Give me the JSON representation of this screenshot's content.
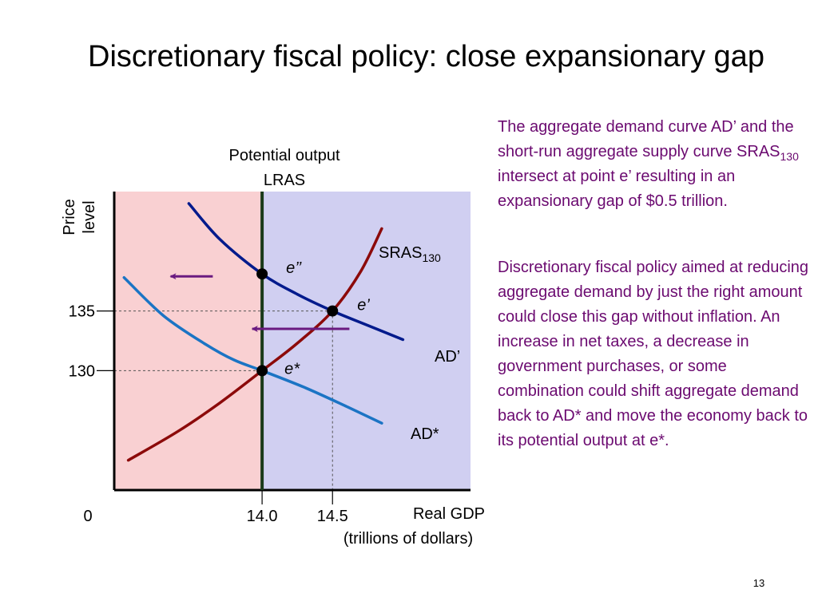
{
  "slide": {
    "title": "Discretionary fiscal policy: close expansionary gap",
    "number": "13"
  },
  "notes": {
    "note1": "The aggregate demand curve AD’ and the short-run aggregate supply curve SRAS130 intersect at point e’ resulting in an expansionary gap of $0.5 trillion.",
    "note2": "Discretionary fiscal policy aimed at reducing aggregate demand by just the right amount could close this gap without inflation. An increase in net taxes, a decrease in government purchases, or some combination could shift aggregate demand back to AD* and move the economy back to its potential output at e*."
  },
  "colors": {
    "recessionary_region": "#f9d0d2",
    "expansionary_region": "#d0cff1",
    "lras": "#1a3a1a",
    "ad_prime": "#001a8c",
    "ad_star": "#1b74c4",
    "sras": "#8c0a0a",
    "arrow": "#6a1a80",
    "note_text": "#6b0a70"
  },
  "chart_data": {
    "type": "line",
    "title": "",
    "xlabel": "Real GDP",
    "xlabel_sub": "(trillions of dollars)",
    "ylabel_line1": "Price",
    "ylabel_line2": "level",
    "x_origin_label": "0",
    "lras_label_line1": "Potential output",
    "lras_label_line2": "LRAS",
    "lras_x": 14.0,
    "x_ticks": [
      {
        "value": 14.0,
        "label": "14.0"
      },
      {
        "value": 14.5,
        "label": "14.5"
      }
    ],
    "y_ticks": [
      {
        "value": 135,
        "label": "135"
      },
      {
        "value": 130,
        "label": "130"
      }
    ],
    "sras_label_main": "SRAS",
    "sras_label_sub": "130",
    "ad_prime_label": "AD’",
    "ad_star_label": "AD*",
    "points": [
      {
        "name": "e’’",
        "x": 14.0,
        "y": 138.1
      },
      {
        "name": "e’",
        "x": 14.5,
        "y": 135
      },
      {
        "name": "e*",
        "x": 14.0,
        "y": 130
      }
    ],
    "series": [
      {
        "name": "AD’",
        "x": [
          13.48,
          13.7,
          14.0,
          14.25,
          14.5,
          14.75,
          15.0
        ],
        "y": [
          144.0,
          141.0,
          138.1,
          136.4,
          135.0,
          133.8,
          132.6
        ]
      },
      {
        "name": "AD*",
        "x": [
          13.02,
          13.3,
          13.6,
          13.8,
          14.0,
          14.3,
          14.6,
          14.85
        ],
        "y": [
          137.8,
          134.6,
          132.2,
          130.9,
          130.0,
          128.6,
          127.0,
          125.6
        ]
      },
      {
        "name": "SRAS130",
        "x": [
          13.05,
          13.4,
          13.7,
          14.0,
          14.25,
          14.5,
          14.7,
          14.85
        ],
        "y": [
          122.5,
          124.9,
          127.3,
          130.0,
          132.3,
          135.0,
          138.3,
          141.9
        ]
      }
    ],
    "shift_arrows": [
      {
        "from_x": 13.65,
        "to_x": 13.35,
        "y": 137.9
      },
      {
        "from_x": 14.62,
        "to_x": 13.93,
        "y": 133.5
      }
    ],
    "xlim": [
      12.95,
      15.48
    ],
    "ylim": [
      120.0,
      145.0
    ],
    "grid": false
  }
}
